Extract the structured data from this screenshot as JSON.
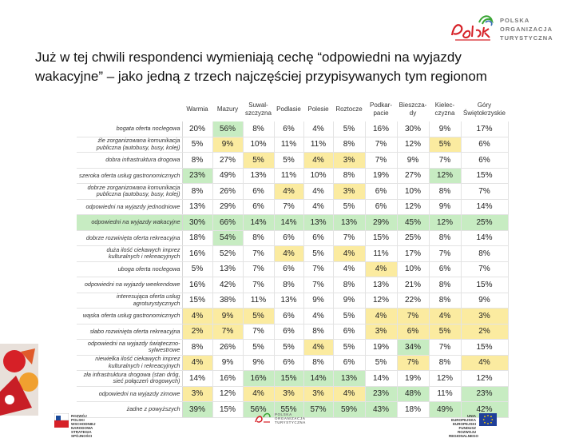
{
  "title": "Już w tej chwili respondenci wymieniają cechę “odpowiedni na wyjazdy wakacyjne” – jako jedną z trzech najczęściej przypisywanych tym regionom",
  "logo": {
    "script_text": "Polska",
    "lines": [
      "POLSKA",
      "ORGANIZACJA",
      "TURYSTYCZNA"
    ]
  },
  "colors": {
    "highlight_yellow": "#fbeba0",
    "highlight_green": "#c7ecc2",
    "logo_red": "#d62027",
    "logo_green": "#3aa535"
  },
  "table": {
    "columns": [
      "Warmia",
      "Mazury",
      "Suwałszczyzna",
      "Podlasie",
      "Polesie",
      "Roztocze",
      "Podkarpacie",
      "Bieszczady",
      "Kielecczyzna",
      "Góry Świętokrzyskie"
    ],
    "column_display": [
      "Warmia",
      "Mazury",
      "Suwal-\nszczyzna",
      "Podlasie",
      "Polesie",
      "Roztocze",
      "Podkar-\npacie",
      "Bieszcza-\ndy",
      "Kielec-\nczyzna",
      "Góry\nŚwiętokrzyskie"
    ],
    "rows": [
      {
        "label": "bogata oferta noclegowa",
        "values": [
          "20%",
          "56%",
          "8%",
          "6%",
          "4%",
          "5%",
          "16%",
          "30%",
          "9%",
          "17%"
        ],
        "hl": [
          "",
          "g",
          "",
          "",
          "",
          "",
          "",
          "",
          "",
          ""
        ]
      },
      {
        "label": "źle zorganizowana komunikacja publiczna (autobusy, busy, kolej)",
        "values": [
          "5%",
          "9%",
          "10%",
          "11%",
          "11%",
          "8%",
          "7%",
          "12%",
          "5%",
          "6%"
        ],
        "hl": [
          "",
          "y",
          "",
          "",
          "",
          "",
          "",
          "",
          "y",
          ""
        ]
      },
      {
        "label": "dobra infrastruktura drogowa",
        "values": [
          "8%",
          "27%",
          "5%",
          "5%",
          "4%",
          "3%",
          "7%",
          "9%",
          "7%",
          "6%"
        ],
        "hl": [
          "",
          "",
          "y",
          "",
          "y",
          "y",
          "",
          "",
          "",
          ""
        ]
      },
      {
        "label": "szeroka oferta usług gastronomicznych",
        "values": [
          "23%",
          "49%",
          "13%",
          "11%",
          "10%",
          "8%",
          "19%",
          "27%",
          "12%",
          "15%"
        ],
        "hl": [
          "g",
          "",
          "",
          "",
          "",
          "",
          "",
          "",
          "g",
          ""
        ]
      },
      {
        "label": "dobrze zorganizowana komunikacja publiczna (autobusy, busy, kolej)",
        "values": [
          "8%",
          "26%",
          "6%",
          "4%",
          "4%",
          "3%",
          "6%",
          "10%",
          "8%",
          "7%"
        ],
        "hl": [
          "",
          "",
          "",
          "y",
          "",
          "y",
          "",
          "",
          "",
          ""
        ]
      },
      {
        "label": "odpowiedni na wyjazdy jednodniowe",
        "values": [
          "13%",
          "29%",
          "6%",
          "7%",
          "4%",
          "5%",
          "6%",
          "12%",
          "9%",
          "14%"
        ],
        "hl": [
          "",
          "",
          "",
          "",
          "",
          "",
          "",
          "",
          "",
          ""
        ]
      },
      {
        "label": "odpowiedni na wyjazdy wakacyjne",
        "values": [
          "30%",
          "66%",
          "14%",
          "14%",
          "13%",
          "13%",
          "29%",
          "45%",
          "12%",
          "25%"
        ],
        "hl": [
          "",
          "",
          "",
          "",
          "",
          "",
          "",
          "",
          "",
          ""
        ],
        "row_hl": true
      },
      {
        "label": "dobrze rozwinięta oferta rekreacyjna",
        "values": [
          "18%",
          "54%",
          "8%",
          "6%",
          "6%",
          "7%",
          "15%",
          "25%",
          "8%",
          "14%"
        ],
        "hl": [
          "",
          "g",
          "",
          "",
          "",
          "",
          "",
          "",
          "",
          ""
        ]
      },
      {
        "label": "duża ilość ciekawych imprez kulturalnych i rekreacyjnych",
        "values": [
          "16%",
          "52%",
          "7%",
          "4%",
          "5%",
          "4%",
          "11%",
          "17%",
          "7%",
          "8%"
        ],
        "hl": [
          "",
          "",
          "",
          "y",
          "",
          "y",
          "",
          "",
          "",
          ""
        ]
      },
      {
        "label": "uboga oferta noclegowa",
        "values": [
          "5%",
          "13%",
          "7%",
          "6%",
          "7%",
          "4%",
          "4%",
          "10%",
          "6%",
          "7%"
        ],
        "hl": [
          "",
          "",
          "",
          "",
          "",
          "",
          "y",
          "",
          "",
          ""
        ]
      },
      {
        "label": "odpowiedni na wyjazdy weekendowe",
        "values": [
          "16%",
          "42%",
          "7%",
          "8%",
          "7%",
          "8%",
          "13%",
          "21%",
          "8%",
          "15%"
        ],
        "hl": [
          "",
          "",
          "",
          "",
          "",
          "",
          "",
          "",
          "",
          ""
        ]
      },
      {
        "label": "interesująca oferta usług agroturystycznych",
        "values": [
          "15%",
          "38%",
          "11%",
          "13%",
          "9%",
          "9%",
          "12%",
          "22%",
          "8%",
          "9%"
        ],
        "hl": [
          "",
          "",
          "",
          "",
          "",
          "",
          "",
          "",
          "",
          ""
        ]
      },
      {
        "label": "wąska oferta usług gastronomicznych",
        "values": [
          "4%",
          "9%",
          "5%",
          "6%",
          "4%",
          "5%",
          "4%",
          "7%",
          "4%",
          "3%"
        ],
        "hl": [
          "y",
          "y",
          "y",
          "",
          "",
          "",
          "y",
          "y",
          "y",
          "y"
        ]
      },
      {
        "label": "słabo rozwinięta oferta rekreacyjna",
        "values": [
          "2%",
          "7%",
          "7%",
          "6%",
          "8%",
          "6%",
          "3%",
          "6%",
          "5%",
          "2%"
        ],
        "hl": [
          "y",
          "y",
          "",
          "",
          "",
          "",
          "y",
          "y",
          "y",
          "y"
        ]
      },
      {
        "label": "odpowiedni na wyjazdy świąteczno-sylwestrowe",
        "values": [
          "8%",
          "26%",
          "5%",
          "5%",
          "4%",
          "5%",
          "19%",
          "34%",
          "7%",
          "15%"
        ],
        "hl": [
          "",
          "",
          "",
          "",
          "y",
          "",
          "",
          "g",
          "",
          ""
        ]
      },
      {
        "label": "niewielka ilość ciekawych imprez kulturalnych i rekreacyjnych",
        "values": [
          "4%",
          "9%",
          "9%",
          "6%",
          "8%",
          "6%",
          "5%",
          "7%",
          "8%",
          "4%"
        ],
        "hl": [
          "y",
          "",
          "",
          "",
          "",
          "",
          "",
          "y",
          "",
          "y"
        ]
      },
      {
        "label": "zła infrastruktura drogowa (stan dróg, sieć połączeń drogowych)",
        "values": [
          "14%",
          "16%",
          "16%",
          "15%",
          "14%",
          "13%",
          "14%",
          "19%",
          "12%",
          "12%"
        ],
        "hl": [
          "",
          "",
          "g",
          "g",
          "g",
          "g",
          "",
          "",
          "",
          ""
        ]
      },
      {
        "label": "odpowiedni na wyjazdy zimowe",
        "values": [
          "3%",
          "12%",
          "4%",
          "3%",
          "3%",
          "4%",
          "23%",
          "48%",
          "11%",
          "23%"
        ],
        "hl": [
          "y",
          "",
          "y",
          "y",
          "y",
          "y",
          "g",
          "g",
          "",
          "g"
        ]
      },
      {
        "label": "żadne z powyższych",
        "values": [
          "39%",
          "15%",
          "56%",
          "55%",
          "57%",
          "59%",
          "43%",
          "18%",
          "49%",
          "42%"
        ],
        "hl": [
          "g",
          "",
          "g",
          "g",
          "g",
          "g",
          "g",
          "",
          "g",
          "g"
        ]
      }
    ]
  },
  "footer": {
    "left_lines": [
      "ROZWÓJ",
      "POLSKI WSCHODNIEJ",
      "NARODOWA STRATEGIA SPÓJNOŚCI"
    ],
    "center_lines": [
      "POLSKA",
      "ORGANIZACJA",
      "TURYSTYCZNA"
    ],
    "right_lines": [
      "UNIA EUROPEJSKA",
      "EUROPEJSKI FUNDUSZ",
      "ROZWOJU REGIONALNEGO"
    ]
  }
}
